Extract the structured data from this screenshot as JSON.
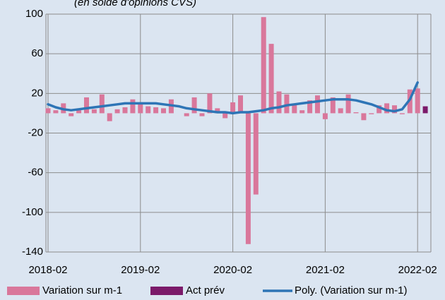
{
  "chart_data": {
    "type": "bar",
    "subtitle": "(en solde d'opinions CVS)",
    "x": [
      "2018-02",
      "2018-03",
      "2018-04",
      "2018-05",
      "2018-06",
      "2018-07",
      "2018-08",
      "2018-09",
      "2018-10",
      "2018-11",
      "2018-12",
      "2019-01",
      "2019-02",
      "2019-03",
      "2019-04",
      "2019-05",
      "2019-06",
      "2019-07",
      "2019-08",
      "2019-09",
      "2019-10",
      "2019-11",
      "2019-12",
      "2020-01",
      "2020-02",
      "2020-03",
      "2020-04",
      "2020-05",
      "2020-06",
      "2020-07",
      "2020-08",
      "2020-09",
      "2020-10",
      "2020-11",
      "2020-12",
      "2021-01",
      "2021-02",
      "2021-03",
      "2021-04",
      "2021-05",
      "2021-06",
      "2021-07",
      "2021-08",
      "2021-09",
      "2021-10",
      "2021-11",
      "2021-12",
      "2022-01",
      "2022-02",
      "2022-03"
    ],
    "series": [
      {
        "name": "Variation sur m-1",
        "color": "#d9779b",
        "kind": "bar",
        "values": [
          5,
          3,
          10,
          -3,
          3,
          16,
          4,
          19,
          -8,
          4,
          6,
          14,
          9,
          7,
          6,
          5,
          14,
          0,
          -3,
          16,
          -3,
          20,
          5,
          -5,
          11,
          18,
          -132,
          -82,
          97,
          70,
          22,
          19,
          9,
          3,
          13,
          18,
          -6,
          16,
          5,
          19,
          1,
          -7,
          -1,
          8,
          10,
          8,
          -1,
          24,
          25,
          null
        ]
      },
      {
        "name": "Act  prév",
        "color": "#7b1a6a",
        "kind": "bar",
        "values": [
          null,
          null,
          null,
          null,
          null,
          null,
          null,
          null,
          null,
          null,
          null,
          null,
          null,
          null,
          null,
          null,
          null,
          null,
          null,
          null,
          null,
          null,
          null,
          null,
          null,
          null,
          null,
          null,
          null,
          null,
          null,
          null,
          null,
          null,
          null,
          null,
          null,
          null,
          null,
          null,
          null,
          null,
          null,
          null,
          null,
          null,
          null,
          null,
          null,
          7
        ]
      },
      {
        "name": "Poly. (Variation sur m-1)",
        "color": "#2e75b6",
        "kind": "line",
        "values": [
          9,
          6,
          4,
          3,
          4,
          5,
          6,
          7,
          8,
          9,
          10,
          10,
          10,
          10,
          10,
          9,
          8,
          7,
          5,
          4,
          3,
          2,
          1,
          1,
          0,
          1,
          1,
          2,
          3,
          5,
          6,
          8,
          9,
          10,
          11,
          12,
          13,
          14,
          14,
          14,
          13,
          11,
          9,
          6,
          3,
          2,
          4,
          14,
          31,
          null
        ]
      }
    ],
    "ylim": [
      -140,
      100
    ],
    "yticks": [
      100,
      60,
      20,
      -20,
      -60,
      -100,
      -140
    ],
    "xticks": [
      "2018-02",
      "2019-02",
      "2020-02",
      "2021-02",
      "2022-02"
    ],
    "grid": true
  }
}
